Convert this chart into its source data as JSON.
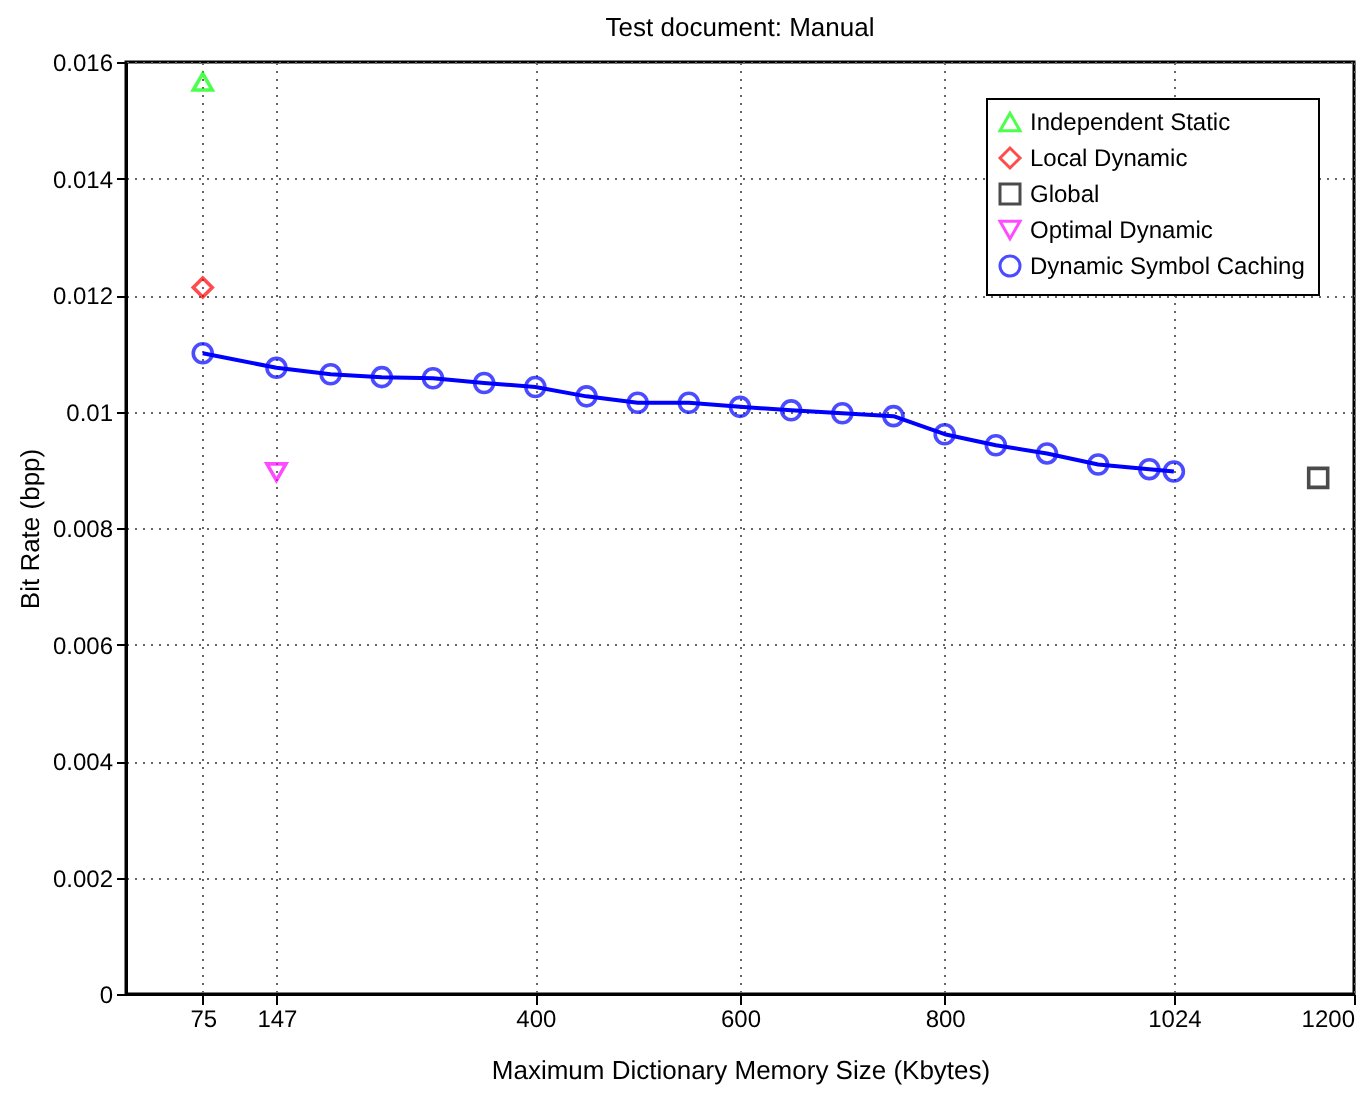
{
  "chart_data": {
    "type": "scatter",
    "title": "Test document: Manual",
    "xlabel": "Maximum Dictionary Memory Size (Kbytes)",
    "ylabel": "Bit Rate (bpp)",
    "xlim": [
      0,
      1200
    ],
    "xticks": [
      75,
      147,
      400,
      600,
      800,
      1024,
      1200
    ],
    "ylim": [
      0,
      0.016
    ],
    "yticks": [
      0,
      0.002,
      0.004,
      0.006,
      0.008,
      0.01,
      0.012,
      0.014,
      0.016
    ],
    "grid": true,
    "legend": "top right",
    "line_style": "solid",
    "series": [
      {
        "name": "Independent Static",
        "marker": "triangle",
        "color": "#00ff00",
        "x": [
          75
        ],
        "values": [
          0.01566
        ]
      },
      {
        "name": "Local Dynamic",
        "marker": "diamond",
        "color": "#ff0000",
        "x": [
          75
        ],
        "values": [
          0.01213
        ]
      },
      {
        "name": "Global",
        "marker": "square",
        "color": "#000000",
        "x": [
          1165
        ],
        "values": [
          0.00886
        ]
      },
      {
        "name": "Optimal Dynamic",
        "marker": "triangle-down",
        "color": "#ff00ff",
        "x": [
          147
        ],
        "values": [
          0.00896
        ]
      },
      {
        "name": "Dynamic Symbol Caching",
        "type": "line",
        "marker": "circle",
        "color": "#0000ff",
        "x": [
          75,
          147,
          200,
          250,
          300,
          350,
          400,
          450,
          500,
          550,
          600,
          650,
          700,
          750,
          800,
          850,
          900,
          950,
          1000,
          1024
        ],
        "values": [
          0.011,
          0.01075,
          0.01064,
          0.01059,
          0.01057,
          0.01049,
          0.01042,
          0.01026,
          0.01015,
          0.01015,
          0.01008,
          0.01002,
          0.00997,
          0.00992,
          0.00961,
          0.00942,
          0.00928,
          0.00909,
          0.00901,
          0.00897
        ]
      }
    ]
  }
}
